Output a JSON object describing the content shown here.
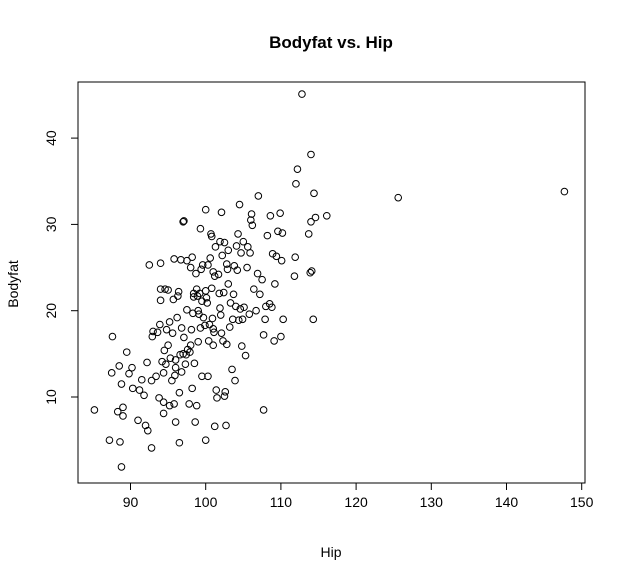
{
  "chart_data": {
    "type": "scatter",
    "title": "Bodyfat vs. Hip",
    "xlabel": "Hip",
    "ylabel": "Bodyfat",
    "xlim": [
      83,
      150
    ],
    "ylim": [
      0,
      46
    ],
    "x_ticks": [
      90,
      100,
      110,
      120,
      130,
      140,
      150
    ],
    "y_ticks": [
      10,
      20,
      30,
      40
    ],
    "grid": false,
    "legend": "none",
    "marker": "open-circle",
    "color": "#000000",
    "points": [
      [
        85.2,
        8.5
      ],
      [
        87.2,
        5.0
      ],
      [
        87.5,
        12.8
      ],
      [
        87.6,
        17.0
      ],
      [
        88.3,
        8.3
      ],
      [
        88.5,
        13.6
      ],
      [
        88.6,
        4.8
      ],
      [
        88.8,
        11.5
      ],
      [
        89.0,
        7.8
      ],
      [
        89.0,
        8.8
      ],
      [
        88.8,
        1.9
      ],
      [
        89.5,
        15.2
      ],
      [
        89.8,
        12.7
      ],
      [
        90.2,
        13.4
      ],
      [
        90.3,
        11.0
      ],
      [
        91.0,
        7.3
      ],
      [
        91.2,
        10.8
      ],
      [
        91.5,
        12.0
      ],
      [
        91.8,
        10.2
      ],
      [
        92.0,
        6.7
      ],
      [
        92.2,
        14.0
      ],
      [
        92.3,
        6.1
      ],
      [
        92.5,
        25.3
      ],
      [
        92.8,
        4.1
      ],
      [
        92.8,
        11.9
      ],
      [
        92.9,
        17.0
      ],
      [
        93.0,
        17.6
      ],
      [
        93.4,
        12.4
      ],
      [
        93.6,
        17.5
      ],
      [
        93.8,
        9.9
      ],
      [
        93.9,
        18.4
      ],
      [
        94.0,
        22.5
      ],
      [
        94.0,
        25.5
      ],
      [
        94.0,
        21.2
      ],
      [
        94.2,
        14.1
      ],
      [
        94.4,
        9.4
      ],
      [
        94.4,
        12.8
      ],
      [
        94.4,
        8.1
      ],
      [
        94.5,
        15.4
      ],
      [
        94.6,
        22.5
      ],
      [
        94.7,
        13.8
      ],
      [
        94.8,
        17.8
      ],
      [
        95.0,
        16.0
      ],
      [
        95.0,
        22.4
      ],
      [
        95.2,
        9.0
      ],
      [
        95.2,
        18.7
      ],
      [
        95.3,
        14.5
      ],
      [
        95.5,
        11.9
      ],
      [
        95.6,
        17.4
      ],
      [
        95.7,
        21.3
      ],
      [
        95.8,
        9.2
      ],
      [
        95.8,
        26.0
      ],
      [
        95.9,
        12.5
      ],
      [
        96.0,
        7.1
      ],
      [
        96.0,
        13.4
      ],
      [
        96.0,
        14.3
      ],
      [
        96.2,
        19.2
      ],
      [
        96.3,
        21.7
      ],
      [
        96.4,
        22.2
      ],
      [
        96.5,
        4.7
      ],
      [
        96.5,
        10.5
      ],
      [
        96.6,
        14.9
      ],
      [
        96.7,
        25.9
      ],
      [
        96.8,
        12.9
      ],
      [
        96.8,
        18.0
      ],
      [
        97.0,
        15.0
      ],
      [
        97.0,
        30.3
      ],
      [
        97.1,
        16.9
      ],
      [
        97.1,
        30.4
      ],
      [
        97.3,
        13.8
      ],
      [
        97.4,
        14.9
      ],
      [
        97.5,
        25.8
      ],
      [
        97.5,
        20.1
      ],
      [
        97.6,
        15.5
      ],
      [
        97.8,
        9.2
      ],
      [
        97.9,
        15.2
      ],
      [
        98.0,
        16.0
      ],
      [
        98.0,
        25.0
      ],
      [
        98.1,
        17.8
      ],
      [
        98.2,
        26.2
      ],
      [
        98.2,
        11.0
      ],
      [
        98.3,
        19.7
      ],
      [
        98.4,
        22.0
      ],
      [
        98.4,
        21.6
      ],
      [
        98.5,
        13.9
      ],
      [
        98.6,
        7.1
      ],
      [
        98.7,
        24.3
      ],
      [
        98.8,
        22.5
      ],
      [
        98.8,
        9.0
      ],
      [
        98.9,
        21.7
      ],
      [
        99.0,
        20.0
      ],
      [
        99.0,
        16.4
      ],
      [
        99.1,
        19.6
      ],
      [
        99.2,
        22.0
      ],
      [
        99.3,
        18.0
      ],
      [
        99.3,
        29.5
      ],
      [
        99.4,
        24.8
      ],
      [
        99.5,
        12.4
      ],
      [
        99.5,
        21.1
      ],
      [
        99.6,
        25.3
      ],
      [
        99.7,
        19.2
      ],
      [
        99.9,
        18.3
      ],
      [
        100.0,
        5.0
      ],
      [
        100.0,
        31.7
      ],
      [
        100.0,
        22.3
      ],
      [
        100.1,
        21.5
      ],
      [
        100.2,
        20.9
      ],
      [
        100.3,
        25.3
      ],
      [
        100.3,
        12.4
      ],
      [
        100.4,
        16.5
      ],
      [
        100.5,
        18.4
      ],
      [
        100.6,
        26.1
      ],
      [
        100.7,
        28.9
      ],
      [
        100.8,
        22.6
      ],
      [
        100.8,
        28.6
      ],
      [
        100.9,
        19.1
      ],
      [
        101.0,
        24.5
      ],
      [
        101.0,
        16.0
      ],
      [
        101.0,
        17.9
      ],
      [
        101.1,
        17.5
      ],
      [
        101.2,
        24.0
      ],
      [
        101.2,
        6.6
      ],
      [
        101.3,
        27.4
      ],
      [
        101.4,
        10.8
      ],
      [
        101.5,
        9.9
      ],
      [
        101.7,
        24.2
      ],
      [
        101.8,
        22.0
      ],
      [
        101.9,
        28.0
      ],
      [
        101.9,
        20.3
      ],
      [
        102.0,
        19.5
      ],
      [
        102.1,
        31.4
      ],
      [
        102.1,
        17.4
      ],
      [
        102.2,
        26.4
      ],
      [
        102.3,
        16.5
      ],
      [
        102.4,
        22.1
      ],
      [
        102.5,
        27.9
      ],
      [
        102.5,
        10.1
      ],
      [
        102.6,
        10.6
      ],
      [
        102.7,
        6.7
      ],
      [
        102.8,
        16.1
      ],
      [
        102.8,
        25.4
      ],
      [
        102.9,
        24.8
      ],
      [
        103.0,
        27.0
      ],
      [
        103.0,
        23.1
      ],
      [
        103.2,
        18.1
      ],
      [
        103.3,
        20.9
      ],
      [
        103.5,
        13.2
      ],
      [
        103.6,
        19.0
      ],
      [
        103.7,
        21.9
      ],
      [
        103.8,
        25.2
      ],
      [
        103.9,
        11.9
      ],
      [
        104.0,
        20.5
      ],
      [
        104.1,
        27.5
      ],
      [
        104.2,
        24.7
      ],
      [
        104.3,
        28.9
      ],
      [
        104.4,
        18.9
      ],
      [
        104.5,
        32.3
      ],
      [
        104.6,
        20.2
      ],
      [
        104.7,
        26.7
      ],
      [
        104.8,
        15.9
      ],
      [
        104.9,
        19.0
      ],
      [
        105.0,
        28.0
      ],
      [
        105.1,
        20.4
      ],
      [
        105.3,
        14.8
      ],
      [
        105.5,
        25.0
      ],
      [
        105.6,
        27.4
      ],
      [
        105.8,
        19.6
      ],
      [
        105.9,
        26.7
      ],
      [
        106.0,
        30.5
      ],
      [
        106.1,
        31.2
      ],
      [
        106.2,
        29.9
      ],
      [
        106.4,
        22.5
      ],
      [
        106.7,
        20.0
      ],
      [
        106.9,
        24.3
      ],
      [
        107.0,
        33.3
      ],
      [
        107.2,
        21.9
      ],
      [
        107.5,
        23.6
      ],
      [
        107.7,
        17.2
      ],
      [
        107.7,
        8.5
      ],
      [
        107.9,
        19.0
      ],
      [
        108.0,
        20.5
      ],
      [
        108.2,
        28.7
      ],
      [
        108.5,
        20.8
      ],
      [
        108.6,
        31.0
      ],
      [
        108.8,
        20.4
      ],
      [
        108.9,
        26.6
      ],
      [
        109.1,
        16.5
      ],
      [
        109.2,
        23.1
      ],
      [
        109.4,
        26.3
      ],
      [
        109.6,
        29.2
      ],
      [
        109.9,
        31.3
      ],
      [
        110.0,
        17.0
      ],
      [
        110.1,
        25.8
      ],
      [
        110.2,
        29.0
      ],
      [
        110.3,
        19.0
      ],
      [
        111.8,
        24.0
      ],
      [
        111.9,
        26.2
      ],
      [
        112.0,
        34.7
      ],
      [
        112.2,
        36.4
      ],
      [
        112.8,
        45.1
      ],
      [
        113.7,
        28.9
      ],
      [
        113.9,
        24.4
      ],
      [
        114.0,
        30.3
      ],
      [
        114.0,
        38.1
      ],
      [
        114.1,
        24.6
      ],
      [
        114.3,
        19.0
      ],
      [
        114.4,
        33.6
      ],
      [
        114.6,
        30.8
      ],
      [
        116.1,
        31.0
      ],
      [
        125.6,
        33.1
      ],
      [
        147.7,
        33.8
      ]
    ]
  }
}
